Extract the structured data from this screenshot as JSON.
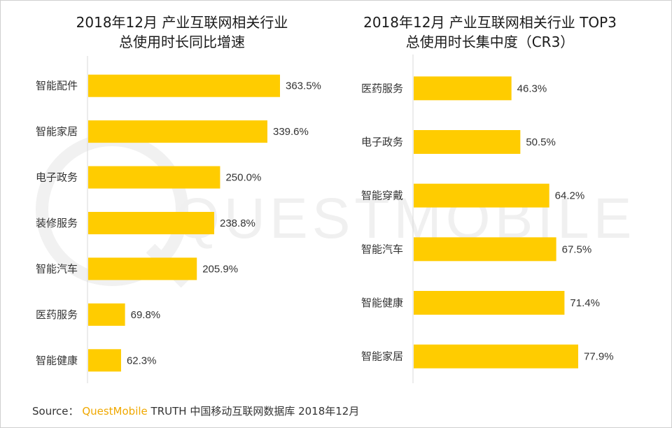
{
  "colors": {
    "bar": "#ffcc00",
    "axis": "#d9d9d9",
    "text": "#333333",
    "brand": "#f0a800"
  },
  "watermark": "QUESTMOBILE",
  "chart_data": [
    {
      "type": "bar",
      "orientation": "horizontal",
      "title": "2018年12月 产业互联网相关行业",
      "subtitle": "总使用时长同比增速",
      "categories": [
        "智能配件",
        "智能家居",
        "电子政务",
        "装修服务",
        "智能汽车",
        "医药服务",
        "智能健康"
      ],
      "values": [
        363.5,
        339.6,
        250.0,
        238.8,
        205.9,
        69.8,
        62.3
      ],
      "value_labels": [
        "363.5%",
        "339.6%",
        "250.0%",
        "238.8%",
        "205.9%",
        "69.8%",
        "62.3%"
      ],
      "unit": "%",
      "grid": false
    },
    {
      "type": "bar",
      "orientation": "horizontal",
      "title": "2018年12月 产业互联网相关行业 TOP3",
      "subtitle": "总使用时长集中度（CR3）",
      "categories": [
        "医药服务",
        "电子政务",
        "智能穿戴",
        "智能汽车",
        "智能健康",
        "智能家居"
      ],
      "values": [
        46.3,
        50.5,
        64.2,
        67.5,
        71.4,
        77.9
      ],
      "value_labels": [
        "46.3%",
        "50.5%",
        "64.2%",
        "67.5%",
        "71.4%",
        "77.9%"
      ],
      "unit": "%",
      "grid": false
    }
  ],
  "source": {
    "prefix": "Source：",
    "brand": "QuestMobile",
    "rest": "TRUTH 中国移动互联网数据库 2018年12月"
  }
}
